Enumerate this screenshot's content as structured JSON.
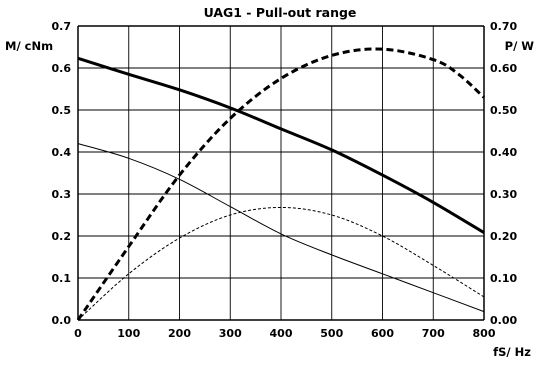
{
  "chart_data": {
    "type": "line",
    "title": "UAG1 - Pull-out range",
    "xlabel": "fS/ Hz",
    "ylabel_left": "M/ cNm",
    "ylabel_right": "P/ W",
    "xlim": [
      0,
      800
    ],
    "ylim_left": [
      0,
      0.7
    ],
    "ylim_right": [
      0,
      0.7
    ],
    "x_ticks": [
      "0",
      "100",
      "200",
      "300",
      "400",
      "500",
      "600",
      "700",
      "800"
    ],
    "y_ticks_left": [
      "0.0",
      "0.1",
      "0.2",
      "0.3",
      "0.4",
      "0.5",
      "0.6",
      "0.7"
    ],
    "y_ticks_right": [
      "0.00",
      "0.10",
      "0.20",
      "0.30",
      "0.40",
      "0.50",
      "0.60",
      "0.70"
    ],
    "grid": true,
    "legend": "none",
    "series": [
      {
        "axis": "left",
        "style": "solid-thick",
        "x": [
          0,
          100,
          200,
          300,
          400,
          500,
          600,
          700,
          800
        ],
        "values": [
          0.623,
          0.585,
          0.548,
          0.505,
          0.455,
          0.405,
          0.345,
          0.28,
          0.208
        ]
      },
      {
        "axis": "right",
        "style": "dashed-thick",
        "x": [
          0,
          100,
          200,
          300,
          400,
          500,
          600,
          700,
          750,
          800
        ],
        "values": [
          0.0,
          0.175,
          0.345,
          0.48,
          0.575,
          0.63,
          0.645,
          0.62,
          0.585,
          0.53
        ]
      },
      {
        "axis": "left",
        "style": "solid-thin",
        "x": [
          0,
          100,
          200,
          300,
          400,
          500,
          600,
          700,
          800
        ],
        "values": [
          0.42,
          0.385,
          0.335,
          0.27,
          0.205,
          0.155,
          0.11,
          0.065,
          0.02
        ]
      },
      {
        "axis": "right",
        "style": "dashed-thin",
        "x": [
          0,
          100,
          200,
          300,
          400,
          500,
          600,
          700,
          800
        ],
        "values": [
          0.0,
          0.11,
          0.195,
          0.25,
          0.268,
          0.25,
          0.2,
          0.13,
          0.055
        ]
      }
    ]
  }
}
